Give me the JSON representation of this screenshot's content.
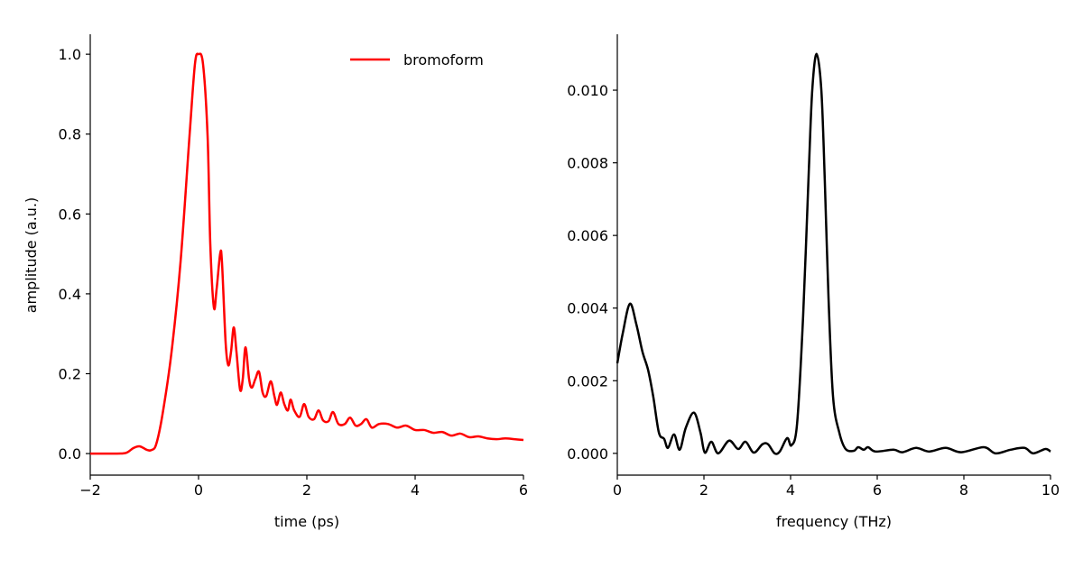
{
  "chart_data": [
    {
      "type": "line",
      "xlabel": "time (ps)",
      "ylabel": "amplitude (a.u.)",
      "xlim": [
        -2,
        6
      ],
      "ylim": [
        -0.054,
        1.05
      ],
      "xticks": [
        -2,
        0,
        2,
        4,
        6
      ],
      "xtick_labels": [
        "−2",
        "0",
        "2",
        "4",
        "6"
      ],
      "yticks": [
        0.0,
        0.2,
        0.4,
        0.6,
        0.8,
        1.0
      ],
      "ytick_labels": [
        "0.0",
        "0.2",
        "0.4",
        "0.6",
        "0.8",
        "1.0"
      ],
      "grid": false,
      "legend": "top-right",
      "series": [
        {
          "name": "bromoform",
          "color": "#ff0000",
          "x": [
            -2.0,
            -1.5,
            -1.333,
            -1.2,
            -1.083,
            -0.95,
            -0.867,
            -0.783,
            -0.667,
            -0.5,
            -0.333,
            -0.167,
            -0.067,
            0,
            0.083,
            0.167,
            0.217,
            0.283,
            0.333,
            0.4,
            0.433,
            0.5,
            0.55,
            0.6,
            0.65,
            0.7,
            0.767,
            0.817,
            0.867,
            0.933,
            0.983,
            1.05,
            1.117,
            1.183,
            1.25,
            1.333,
            1.4,
            1.45,
            1.517,
            1.583,
            1.65,
            1.7,
            1.767,
            1.867,
            1.95,
            2.033,
            2.133,
            2.217,
            2.3,
            2.4,
            2.483,
            2.583,
            2.7,
            2.8,
            2.9,
            3.0,
            3.1,
            3.2,
            3.333,
            3.5,
            3.667,
            3.833,
            4.0,
            4.167,
            4.333,
            4.5,
            4.667,
            4.833,
            5.0,
            5.167,
            5.333,
            5.5,
            5.667,
            5.833,
            6.0
          ],
          "y": [
            0,
            0,
            0.002,
            0.014,
            0.018,
            0.009,
            0.009,
            0.023,
            0.097,
            0.253,
            0.479,
            0.795,
            0.975,
            1.0,
            0.975,
            0.795,
            0.524,
            0.366,
            0.411,
            0.501,
            0.478,
            0.278,
            0.221,
            0.255,
            0.316,
            0.255,
            0.16,
            0.187,
            0.266,
            0.187,
            0.165,
            0.187,
            0.205,
            0.153,
            0.144,
            0.181,
            0.144,
            0.122,
            0.153,
            0.124,
            0.108,
            0.135,
            0.108,
            0.092,
            0.124,
            0.092,
            0.086,
            0.108,
            0.083,
            0.081,
            0.104,
            0.074,
            0.074,
            0.09,
            0.07,
            0.074,
            0.086,
            0.065,
            0.074,
            0.074,
            0.065,
            0.07,
            0.059,
            0.059,
            0.052,
            0.054,
            0.045,
            0.05,
            0.041,
            0.043,
            0.038,
            0.036,
            0.038,
            0.036,
            0.034
          ]
        }
      ]
    },
    {
      "type": "line",
      "xlabel": "frequency (THz)",
      "ylabel": "",
      "xlim": [
        0,
        10
      ],
      "ylim": [
        -0.0006,
        0.01154
      ],
      "xticks": [
        0,
        2,
        4,
        6,
        8,
        10
      ],
      "xtick_labels": [
        "0",
        "2",
        "4",
        "6",
        "8",
        "10"
      ],
      "yticks": [
        0.0,
        0.002,
        0.004,
        0.006,
        0.008,
        0.01
      ],
      "ytick_labels": [
        "0.000",
        "0.002",
        "0.004",
        "0.006",
        "0.008",
        "0.010"
      ],
      "grid": false,
      "series": [
        {
          "color": "#000000",
          "x": [
            0,
            0.125,
            0.29,
            0.44,
            0.58,
            0.71,
            0.83,
            0.96,
            1.08,
            1.17,
            1.31,
            1.44,
            1.58,
            1.77,
            1.92,
            2.02,
            2.17,
            2.33,
            2.58,
            2.79,
            2.96,
            3.15,
            3.35,
            3.48,
            3.63,
            3.75,
            3.92,
            4.02,
            4.15,
            4.29,
            4.42,
            4.5,
            4.6,
            4.71,
            4.79,
            4.875,
            4.98,
            5.125,
            5.27,
            5.46,
            5.56,
            5.69,
            5.79,
            5.96,
            6.375,
            6.58,
            6.9,
            7.2,
            7.58,
            7.94,
            8.46,
            8.73,
            9.08,
            9.4,
            9.6,
            9.88,
            10
          ],
          "y": [
            0.00248,
            0.0033,
            0.00412,
            0.00355,
            0.0028,
            0.0023,
            0.00156,
            0.00057,
            0.0004,
            0.00015,
            0.00052,
            0.0001,
            0.0007,
            0.00112,
            0.00057,
            2e-05,
            0.00032,
            0.0,
            0.00035,
            0.00012,
            0.00032,
            2e-05,
            0.00025,
            0.00025,
            0.0,
            5e-05,
            0.00042,
            0.00022,
            0.00082,
            0.0038,
            0.00777,
            0.01,
            0.011,
            0.01,
            0.0075,
            0.0043,
            0.00156,
            0.00057,
            0.00012,
            7e-05,
            0.00017,
            0.0001,
            0.00017,
            5e-05,
            0.0001,
            3e-05,
            0.00015,
            5e-05,
            0.00015,
            3e-05,
            0.00017,
            0,
            0.0001,
            0.00015,
            0,
            0.00012,
            5e-05
          ]
        }
      ]
    }
  ]
}
